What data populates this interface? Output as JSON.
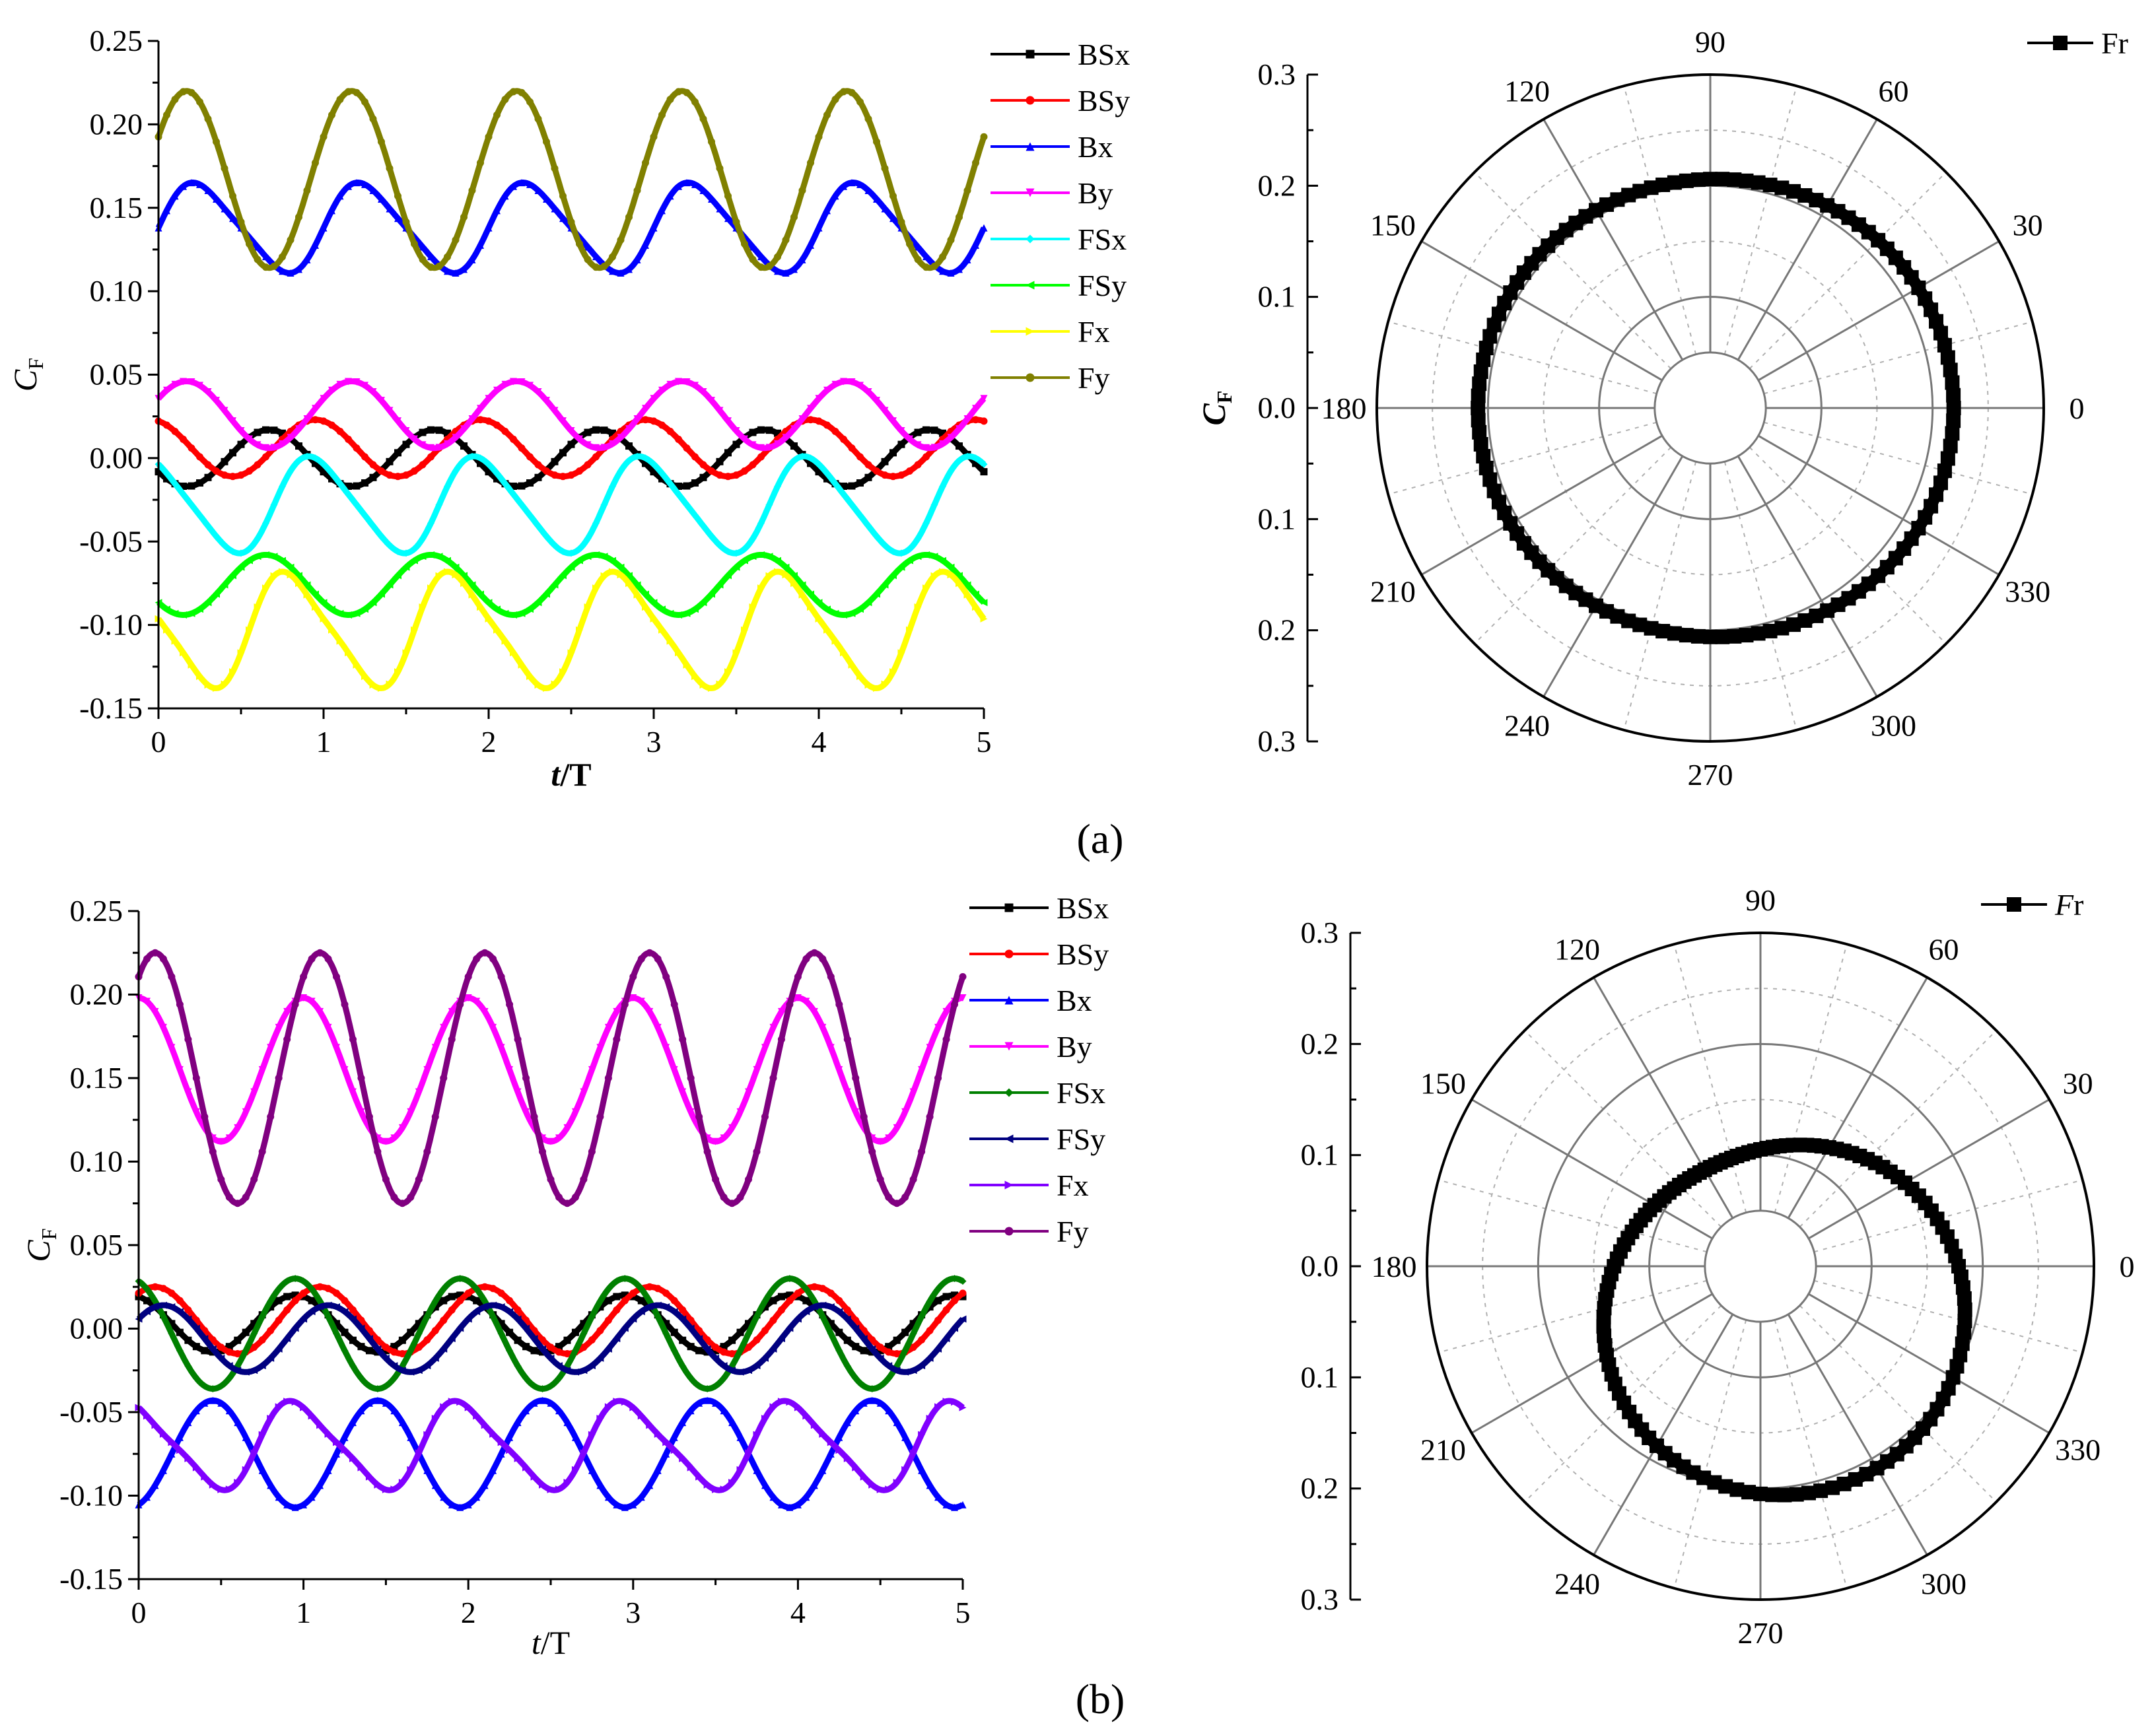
{
  "figure": {
    "panel_labels": [
      "(a)",
      "(b)"
    ]
  },
  "chart_data": [
    {
      "id": "a-time",
      "type": "line",
      "title": "",
      "xlabel_main": "t",
      "xlabel_rest": "/T",
      "ylabel_main": "C",
      "ylabel_sub": "F",
      "xlim": [
        0,
        5
      ],
      "ylim": [
        -0.15,
        0.25
      ],
      "xticks": [
        0,
        1,
        2,
        3,
        4,
        5
      ],
      "xtick_labels": [
        "0",
        "1",
        "2",
        "3",
        "4",
        "5"
      ],
      "yticks": [
        -0.15,
        -0.1,
        -0.05,
        0.0,
        0.05,
        0.1,
        0.15,
        0.2,
        0.25
      ],
      "ytick_labels": [
        "-0.15",
        "-0.10",
        "-0.05",
        "0.00",
        "0.05",
        "0.10",
        "0.15",
        "0.20",
        "0.25"
      ],
      "legend_position": "top-right, outside plot",
      "series": [
        {
          "name": "BSx",
          "color": "#000000",
          "marker": "square",
          "period": 1.0,
          "mean": 0.0,
          "amp": 0.017,
          "phase": 0.42,
          "harm2": 0.0
        },
        {
          "name": "BSy",
          "color": "#ff0000",
          "marker": "circle",
          "period": 1.0,
          "mean": 0.006,
          "amp": 0.017,
          "phase": 0.7,
          "harm2": 0.0
        },
        {
          "name": "Bx",
          "color": "#0000ff",
          "marker": "triangle-up",
          "period": 1.0,
          "mean": 0.138,
          "amp": 0.026,
          "phase": 0.0,
          "harm2": 0.004
        },
        {
          "name": "By",
          "color": "#ff00ff",
          "marker": "triangle-down",
          "period": 1.0,
          "mean": 0.026,
          "amp": 0.02,
          "phase": 0.92,
          "harm2": 0.0
        },
        {
          "name": "FSx",
          "color": "#00ffff",
          "marker": "diamond",
          "period": 1.0,
          "mean": -0.028,
          "amp": 0.028,
          "phase": 0.7,
          "harm2": 0.004
        },
        {
          "name": "FSy",
          "color": "#00ff00",
          "marker": "triangle-left",
          "period": 1.0,
          "mean": -0.076,
          "amp": 0.018,
          "phase": 0.4,
          "harm2": 0.0
        },
        {
          "name": "Fx",
          "color": "#ffff00",
          "marker": "triangle-right",
          "period": 1.0,
          "mean": -0.103,
          "amp": 0.033,
          "phase": 0.55,
          "harm2": 0.006
        },
        {
          "name": "Fy",
          "color": "#808000",
          "marker": "hexagon",
          "period": 1.0,
          "mean": 0.167,
          "amp": 0.053,
          "phase": 0.92,
          "harm2": 0.0
        }
      ]
    },
    {
      "id": "a-polar",
      "type": "polar",
      "legend": "Fr",
      "legend_italic": false,
      "ylabel_main": "C",
      "ylabel_sub": "F",
      "rmax": 0.3,
      "rings": [
        0.1,
        0.2,
        0.3
      ],
      "radial_tick_labels": [
        "0.3",
        "0.2",
        "0.1",
        "0.0",
        "0.1",
        "0.2",
        "0.3"
      ],
      "angle_labels": [
        "0",
        "30",
        "60",
        "90",
        "120",
        "150",
        "180",
        "210",
        "240",
        "270",
        "300",
        "330"
      ],
      "curve": {
        "r_base": 0.21,
        "a1": 0.005,
        "a1_angle_deg": 0,
        "a2": 0.004,
        "a2_angle_deg": 0
      }
    },
    {
      "id": "b-time",
      "type": "line",
      "title": "",
      "xlabel_main": "t",
      "xlabel_rest": "/T",
      "ylabel_main": "C",
      "ylabel_sub": "F",
      "xlim": [
        0,
        5
      ],
      "ylim": [
        -0.15,
        0.25
      ],
      "xticks": [
        0,
        1,
        2,
        3,
        4,
        5
      ],
      "xtick_labels": [
        "0",
        "1",
        "2",
        "3",
        "4",
        "5"
      ],
      "yticks": [
        -0.15,
        -0.1,
        -0.05,
        0.0,
        0.05,
        0.1,
        0.15,
        0.2,
        0.25
      ],
      "ytick_labels": [
        "-0.15",
        "-0.10",
        "-0.05",
        "0.00",
        "0.05",
        "0.10",
        "0.15",
        "0.20",
        "0.25"
      ],
      "legend_position": "top-right, outside plot",
      "series": [
        {
          "name": "BSx",
          "color": "#000000",
          "marker": "square",
          "period": 1.0,
          "mean": 0.003,
          "amp": 0.017,
          "phase": 0.7,
          "harm2": 0.0
        },
        {
          "name": "BSy",
          "color": "#ff0000",
          "marker": "circle",
          "period": 1.0,
          "mean": 0.005,
          "amp": 0.02,
          "phase": 0.85,
          "harm2": 0.0
        },
        {
          "name": "Bx",
          "color": "#0000ff",
          "marker": "triangle-up",
          "period": 1.0,
          "mean": -0.075,
          "amp": 0.032,
          "phase": 0.2,
          "harm2": 0.0
        },
        {
          "name": "By",
          "color": "#ff00ff",
          "marker": "triangle-down",
          "period": 1.0,
          "mean": 0.155,
          "amp": 0.043,
          "phase": 0.75,
          "harm2": 0.0
        },
        {
          "name": "FSx",
          "color": "#008000",
          "marker": "diamond",
          "period": 1.0,
          "mean": -0.003,
          "amp": 0.033,
          "phase": 0.7,
          "harm2": 0.0
        },
        {
          "name": "FSy",
          "color": "#000080",
          "marker": "triangle-left",
          "period": 1.0,
          "mean": -0.006,
          "amp": 0.02,
          "phase": 0.9,
          "harm2": 0.0
        },
        {
          "name": "Fx",
          "color": "#8000ff",
          "marker": "triangle-right",
          "period": 1.0,
          "mean": -0.07,
          "amp": 0.025,
          "phase": 0.72,
          "harm2": 0.005
        },
        {
          "name": "Fy",
          "color": "#800080",
          "marker": "hexagon",
          "period": 1.0,
          "mean": 0.15,
          "amp": 0.075,
          "phase": 0.85,
          "harm2": 0.0
        }
      ]
    },
    {
      "id": "b-polar",
      "type": "polar",
      "legend_italic_part": "F",
      "legend_rest": "r",
      "rmax": 0.3,
      "rings": [
        0.1,
        0.2,
        0.3
      ],
      "radial_tick_labels": [
        "0.3",
        "0.2",
        "0.1",
        "0.0",
        "0.1",
        "0.2",
        "0.3"
      ],
      "angle_labels": [
        "0",
        "30",
        "60",
        "90",
        "120",
        "150",
        "180",
        "210",
        "240",
        "270",
        "300",
        "330"
      ],
      "curve": {
        "r_base": 0.155,
        "a1": 0.055,
        "a1_angle_deg": 295,
        "a2": 0.0,
        "a2_angle_deg": 0
      }
    }
  ]
}
